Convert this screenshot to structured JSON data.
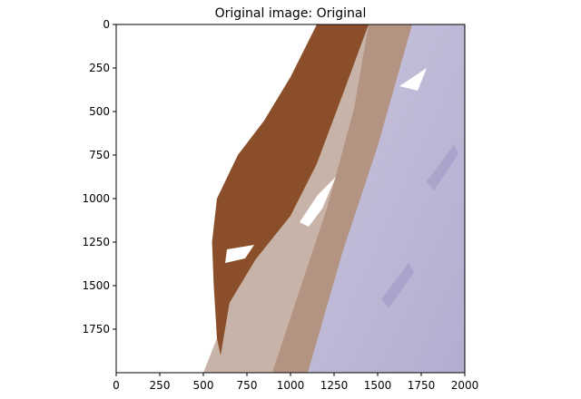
{
  "chart_data": {
    "type": "image",
    "title": "Original image: Original",
    "xlim": [
      0,
      2000
    ],
    "xticks": [
      0,
      250,
      500,
      750,
      1000,
      1250,
      1500,
      1750,
      2000
    ],
    "ylim": [
      2000,
      0
    ],
    "yticks": [
      0,
      250,
      500,
      750,
      1000,
      1250,
      1500,
      1750
    ]
  }
}
